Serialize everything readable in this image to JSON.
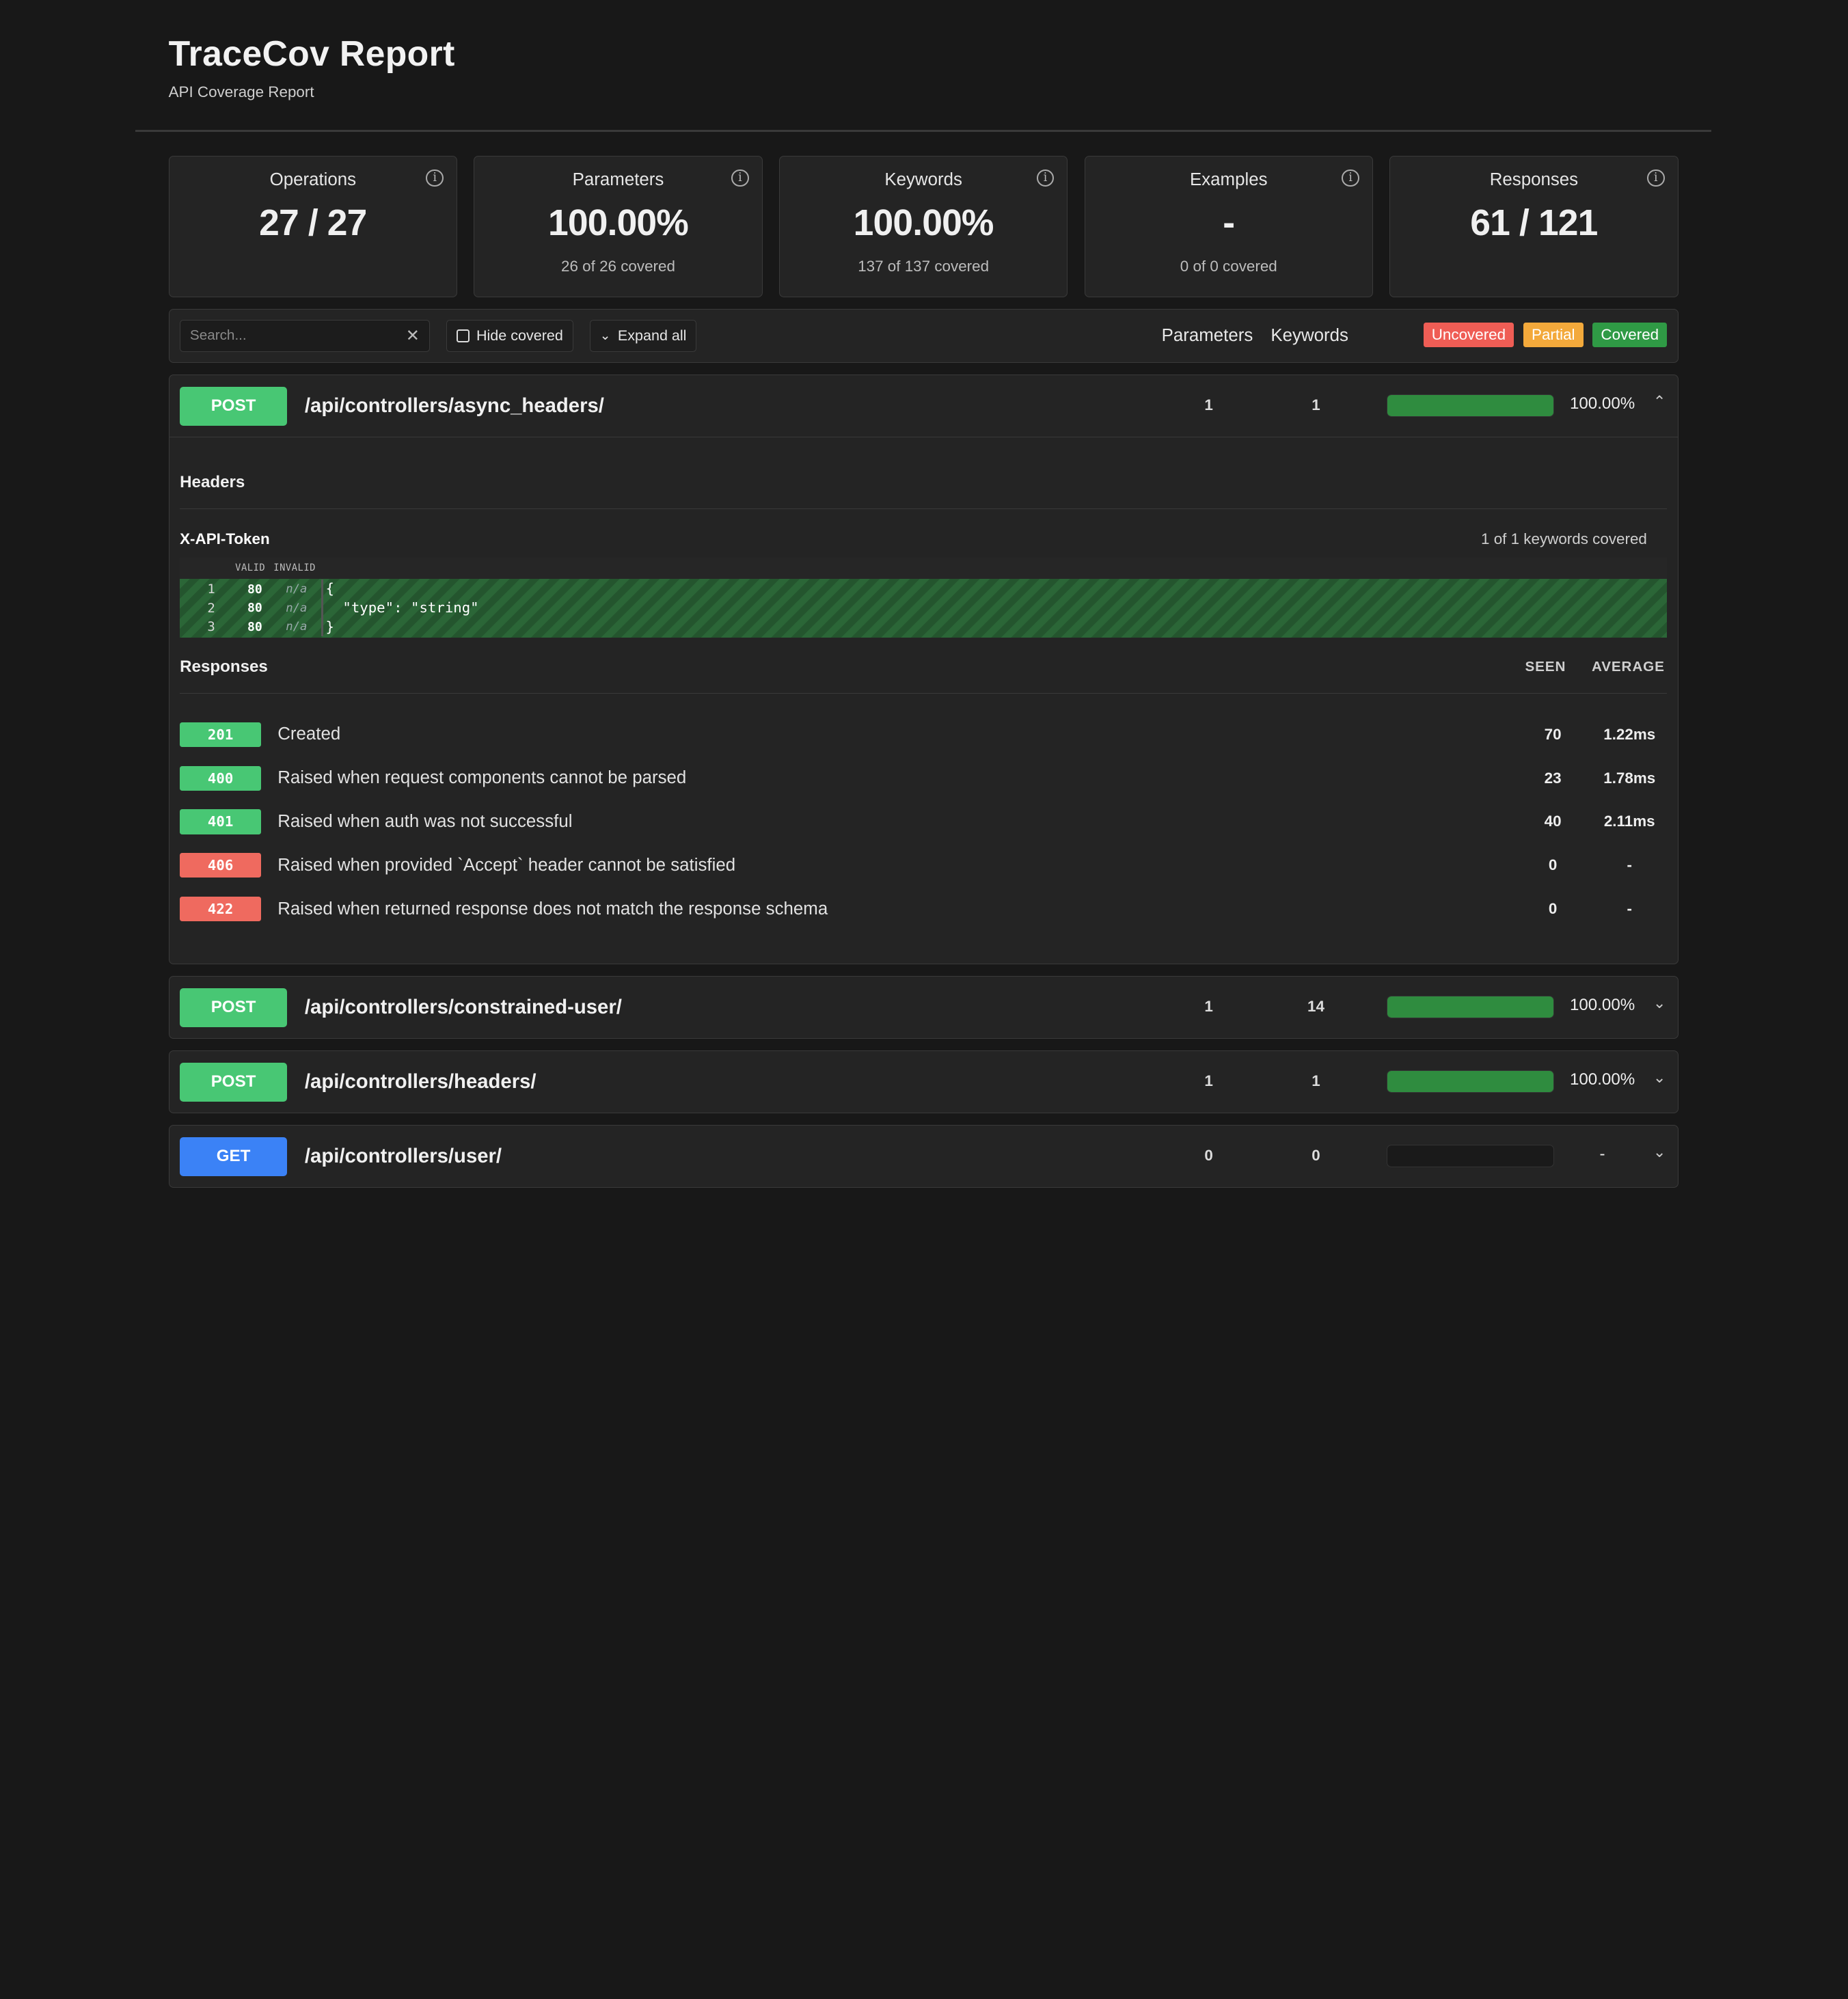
{
  "header": {
    "title": "TraceCov Report",
    "subtitle": "API Coverage Report"
  },
  "cards": [
    {
      "label": "Operations",
      "value": "27 / 27",
      "sub": ""
    },
    {
      "label": "Parameters",
      "value": "100.00%",
      "sub": "26 of 26 covered"
    },
    {
      "label": "Keywords",
      "value": "100.00%",
      "sub": "137 of 137 covered"
    },
    {
      "label": "Examples",
      "value": "-",
      "sub": "0 of 0 covered"
    },
    {
      "label": "Responses",
      "value": "61 / 121",
      "sub": ""
    }
  ],
  "info_glyph": "i",
  "toolbar": {
    "search_placeholder": "Search...",
    "clear_glyph": "✕",
    "hide_covered_label": "Hide covered",
    "expand_all_label": "Expand all",
    "expand_glyph": "⌄",
    "col_parameters": "Parameters",
    "col_keywords": "Keywords",
    "legend": {
      "uncovered": "Uncovered",
      "partial": "Partial",
      "covered": "Covered"
    }
  },
  "colors": {
    "uncovered": "#ef5d55",
    "partial": "#f3a93b",
    "covered": "#2f9a45",
    "post": "#48c774",
    "get": "#3b82f6"
  },
  "operations": [
    {
      "method": "POST",
      "path": "/api/controllers/async_headers/",
      "params": "1",
      "keywords": "1",
      "coverage": 1.0,
      "pct": "100.00%",
      "caret": "⌃"
    },
    {
      "method": "POST",
      "path": "/api/controllers/constrained-user/",
      "params": "1",
      "keywords": "14",
      "coverage": 1.0,
      "pct": "100.00%",
      "caret": "⌄"
    },
    {
      "method": "POST",
      "path": "/api/controllers/headers/",
      "params": "1",
      "keywords": "1",
      "coverage": 1.0,
      "pct": "100.00%",
      "caret": "⌄"
    },
    {
      "method": "GET",
      "path": "/api/controllers/user/",
      "params": "0",
      "keywords": "0",
      "coverage": 0,
      "pct": "-",
      "caret": "⌄"
    }
  ],
  "expanded": {
    "headers_title": "Headers",
    "param_name": "X-API-Token",
    "param_coverage": "1 of 1 keywords covered",
    "code_head_valid": "VALID",
    "code_head_invalid": "INVALID",
    "code_lines": [
      {
        "n": "1",
        "valid": "80",
        "invalid": "n/a",
        "text": "{"
      },
      {
        "n": "2",
        "valid": "80",
        "invalid": "n/a",
        "text": "  \"type\": \"string\""
      },
      {
        "n": "3",
        "valid": "80",
        "invalid": "n/a",
        "text": "}"
      }
    ],
    "responses_title": "Responses",
    "col_seen": "SEEN",
    "col_average": "AVERAGE",
    "responses": [
      {
        "code": "201",
        "desc": "Created",
        "seen": "70",
        "avg": "1.22ms"
      },
      {
        "code": "400",
        "desc": "Raised when request components cannot be parsed",
        "seen": "23",
        "avg": "1.78ms"
      },
      {
        "code": "401",
        "desc": "Raised when auth was not successful",
        "seen": "40",
        "avg": "2.11ms"
      },
      {
        "code": "406",
        "desc": "Raised when provided `Accept` header cannot be satisfied",
        "seen": "0",
        "avg": "-"
      },
      {
        "code": "422",
        "desc": "Raised when returned response does not match the response schema",
        "seen": "0",
        "avg": "-"
      }
    ]
  }
}
